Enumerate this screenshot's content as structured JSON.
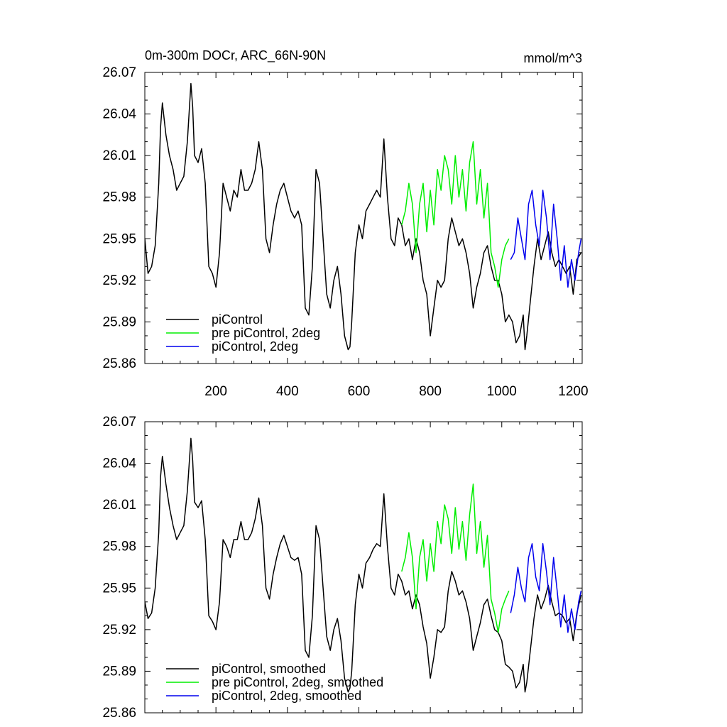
{
  "figure": {
    "title_left": "0m-300m DOCr, ARC_66N-90N",
    "title_right": "mmol/m^3"
  },
  "chart_data": [
    {
      "type": "line",
      "title": "0m-300m DOCr, ARC_66N-90N",
      "units_label": "mmol/m^3",
      "xlabel": "",
      "ylabel": "",
      "xlim": [
        1,
        1225
      ],
      "ylim": [
        25.86,
        26.07
      ],
      "x_ticks": [
        200,
        400,
        600,
        800,
        1000,
        1200
      ],
      "x_tick_labels": [
        "200",
        "400",
        "600",
        "800",
        "1000",
        "1200"
      ],
      "y_ticks": [
        25.86,
        25.89,
        25.92,
        25.95,
        25.98,
        26.01,
        26.04,
        26.07
      ],
      "y_tick_labels": [
        "25.86",
        "25.89",
        "25.92",
        "25.95",
        "25.98",
        "26.01",
        "26.04",
        "26.07"
      ],
      "legend_position": "bottom-left",
      "series": [
        {
          "name": "piControl",
          "color": "#000000",
          "x": [
            1,
            10,
            20,
            30,
            40,
            45,
            50,
            60,
            70,
            80,
            90,
            100,
            110,
            120,
            130,
            135,
            140,
            150,
            160,
            170,
            180,
            190,
            200,
            210,
            220,
            230,
            240,
            250,
            260,
            270,
            280,
            290,
            300,
            310,
            320,
            330,
            340,
            350,
            360,
            370,
            380,
            390,
            400,
            410,
            420,
            430,
            440,
            450,
            460,
            470,
            480,
            490,
            500,
            510,
            520,
            530,
            540,
            550,
            560,
            570,
            575,
            580,
            590,
            600,
            610,
            620,
            630,
            640,
            650,
            660,
            670,
            680,
            690,
            700,
            710,
            720,
            730,
            740,
            750,
            760,
            770,
            780,
            790,
            800,
            810,
            820,
            830,
            840,
            850,
            860,
            870,
            880,
            890,
            900,
            910,
            920,
            930,
            940,
            950,
            960,
            970,
            980,
            990,
            1000,
            1010,
            1020,
            1030,
            1040,
            1050,
            1060,
            1065,
            1070,
            1080,
            1090,
            1100,
            1110,
            1120,
            1130,
            1140,
            1150,
            1160,
            1170,
            1180,
            1190,
            1200,
            1210,
            1222
          ],
          "values": [
            25.95,
            25.925,
            25.93,
            25.945,
            25.99,
            26.03,
            26.048,
            26.025,
            26.01,
            26.0,
            25.985,
            25.99,
            25.995,
            26.02,
            26.062,
            26.045,
            26.01,
            26.005,
            26.015,
            25.99,
            25.93,
            25.925,
            25.915,
            25.94,
            25.99,
            25.98,
            25.97,
            25.985,
            25.98,
            26.0,
            25.985,
            25.985,
            25.99,
            26.0,
            26.02,
            26.0,
            25.95,
            25.94,
            25.96,
            25.975,
            25.985,
            25.99,
            25.98,
            25.97,
            25.965,
            25.97,
            25.96,
            25.9,
            25.895,
            25.93,
            26.0,
            25.99,
            25.95,
            25.91,
            25.9,
            25.92,
            25.93,
            25.91,
            25.88,
            25.87,
            25.872,
            25.89,
            25.94,
            25.96,
            25.95,
            25.97,
            25.975,
            25.98,
            25.985,
            25.98,
            26.022,
            25.98,
            25.95,
            25.945,
            25.965,
            25.96,
            25.945,
            25.95,
            25.935,
            25.95,
            25.94,
            25.92,
            25.91,
            25.88,
            25.9,
            25.92,
            25.915,
            25.92,
            25.95,
            25.965,
            25.955,
            25.945,
            25.95,
            25.94,
            25.925,
            25.9,
            25.915,
            25.925,
            25.94,
            25.945,
            25.93,
            25.92,
            25.92,
            25.91,
            25.89,
            25.895,
            25.89,
            25.875,
            25.88,
            25.895,
            25.87,
            25.88,
            25.905,
            25.93,
            25.95,
            25.935,
            25.945,
            25.955,
            25.94,
            25.93,
            25.935,
            25.93,
            25.925,
            25.93,
            25.91,
            25.935,
            25.94
          ]
        },
        {
          "name": "pre piControl, 2deg",
          "color": "#00ee00",
          "x": [
            720,
            730,
            740,
            750,
            760,
            770,
            780,
            790,
            800,
            810,
            820,
            830,
            840,
            850,
            860,
            870,
            880,
            890,
            900,
            910,
            920,
            930,
            940,
            950,
            960,
            970,
            980,
            990,
            1000,
            1010,
            1020
          ],
          "values": [
            25.96,
            25.97,
            25.99,
            25.975,
            25.94,
            25.975,
            25.99,
            25.955,
            25.985,
            25.96,
            26.0,
            25.985,
            26.01,
            26.0,
            25.975,
            26.01,
            25.98,
            26.0,
            25.97,
            26.005,
            26.02,
            25.975,
            26.0,
            25.965,
            25.99,
            25.94,
            25.93,
            25.915,
            25.935,
            25.945,
            25.95
          ]
        },
        {
          "name": "piControl, 2deg",
          "color": "#0000ee",
          "x": [
            1025,
            1035,
            1045,
            1055,
            1065,
            1075,
            1085,
            1095,
            1105,
            1115,
            1125,
            1135,
            1145,
            1155,
            1165,
            1175,
            1185,
            1195,
            1205,
            1215,
            1222
          ],
          "values": [
            25.935,
            25.94,
            25.965,
            25.95,
            25.935,
            25.975,
            25.985,
            25.96,
            25.945,
            25.985,
            25.965,
            25.935,
            25.975,
            25.95,
            25.92,
            25.945,
            25.915,
            25.935,
            25.92,
            25.94,
            25.95
          ]
        }
      ]
    },
    {
      "type": "line",
      "title": "",
      "xlabel": "",
      "ylabel": "",
      "xlim": [
        1,
        1225
      ],
      "ylim": [
        25.86,
        26.07
      ],
      "x_ticks": [
        200,
        400,
        600,
        800,
        1000,
        1200
      ],
      "y_ticks": [
        25.86,
        25.89,
        25.92,
        25.95,
        25.98,
        26.01,
        26.04,
        26.07
      ],
      "y_tick_labels": [
        "25.86",
        "25.89",
        "25.92",
        "25.95",
        "25.98",
        "26.01",
        "26.04",
        "26.07"
      ],
      "legend_position": "bottom-left",
      "series": [
        {
          "name": "piControl, smoothed",
          "color": "#000000",
          "x": [
            1,
            10,
            20,
            30,
            40,
            45,
            50,
            60,
            70,
            80,
            90,
            100,
            110,
            120,
            130,
            135,
            140,
            150,
            160,
            170,
            180,
            190,
            200,
            210,
            220,
            230,
            240,
            250,
            260,
            270,
            280,
            290,
            300,
            310,
            320,
            330,
            340,
            350,
            360,
            370,
            380,
            390,
            400,
            410,
            420,
            430,
            440,
            450,
            460,
            470,
            480,
            490,
            500,
            510,
            520,
            530,
            540,
            550,
            560,
            570,
            575,
            580,
            590,
            600,
            610,
            620,
            630,
            640,
            650,
            660,
            670,
            680,
            690,
            700,
            710,
            720,
            730,
            740,
            750,
            760,
            770,
            780,
            790,
            800,
            810,
            820,
            830,
            840,
            850,
            860,
            870,
            880,
            890,
            900,
            910,
            920,
            930,
            940,
            950,
            960,
            970,
            980,
            990,
            1000,
            1010,
            1020,
            1030,
            1040,
            1050,
            1060,
            1065,
            1070,
            1080,
            1090,
            1100,
            1110,
            1120,
            1130,
            1140,
            1150,
            1160,
            1170,
            1180,
            1190,
            1200,
            1210,
            1222
          ],
          "values": [
            25.94,
            25.928,
            25.932,
            25.95,
            25.99,
            26.03,
            26.045,
            26.025,
            26.008,
            25.995,
            25.985,
            25.99,
            25.995,
            26.02,
            26.058,
            26.042,
            26.012,
            26.008,
            26.013,
            25.985,
            25.93,
            25.926,
            25.92,
            25.94,
            25.985,
            25.98,
            25.972,
            25.985,
            25.985,
            25.998,
            25.985,
            25.985,
            25.99,
            26.0,
            26.015,
            25.995,
            25.95,
            25.942,
            25.96,
            25.972,
            25.982,
            25.988,
            25.98,
            25.972,
            25.97,
            25.972,
            25.96,
            25.905,
            25.9,
            25.93,
            25.995,
            25.985,
            25.95,
            25.915,
            25.905,
            25.92,
            25.928,
            25.912,
            25.885,
            25.875,
            25.878,
            25.89,
            25.938,
            25.96,
            25.95,
            25.968,
            25.972,
            25.978,
            25.982,
            25.98,
            26.018,
            25.98,
            25.95,
            25.945,
            25.96,
            25.955,
            25.945,
            25.948,
            25.935,
            25.945,
            25.938,
            25.922,
            25.91,
            25.885,
            25.9,
            25.92,
            25.918,
            25.922,
            25.948,
            25.962,
            25.955,
            25.945,
            25.948,
            25.94,
            25.928,
            25.905,
            25.915,
            25.925,
            25.938,
            25.942,
            25.93,
            25.92,
            25.918,
            25.912,
            25.895,
            25.893,
            25.89,
            25.878,
            25.882,
            25.895,
            25.875,
            25.882,
            25.905,
            25.928,
            25.945,
            25.935,
            25.942,
            25.952,
            25.94,
            25.93,
            25.932,
            25.93,
            25.925,
            25.928,
            25.912,
            25.932,
            25.945
          ]
        },
        {
          "name": "pre piControl, 2deg, smoothed",
          "color": "#00ee00",
          "x": [
            720,
            730,
            740,
            750,
            760,
            770,
            780,
            790,
            800,
            810,
            820,
            830,
            840,
            850,
            860,
            870,
            880,
            890,
            900,
            910,
            920,
            930,
            940,
            950,
            960,
            970,
            980,
            990,
            1000,
            1010,
            1020
          ],
          "values": [
            25.962,
            25.972,
            25.99,
            25.972,
            25.935,
            25.972,
            25.985,
            25.955,
            25.982,
            25.962,
            25.998,
            25.982,
            26.01,
            26.0,
            25.975,
            26.008,
            25.978,
            25.998,
            25.97,
            26.003,
            26.025,
            25.975,
            25.998,
            25.965,
            25.988,
            25.942,
            25.932,
            25.918,
            25.935,
            25.942,
            25.948
          ]
        },
        {
          "name": "piControl, 2deg, smoothed",
          "color": "#0000ee",
          "x": [
            1025,
            1035,
            1045,
            1055,
            1065,
            1075,
            1085,
            1095,
            1105,
            1115,
            1125,
            1135,
            1145,
            1155,
            1165,
            1175,
            1185,
            1195,
            1205,
            1215,
            1222
          ],
          "values": [
            25.932,
            25.945,
            25.965,
            25.95,
            25.94,
            25.972,
            25.982,
            25.958,
            25.948,
            25.982,
            25.962,
            25.938,
            25.972,
            25.948,
            25.922,
            25.945,
            25.918,
            25.935,
            25.92,
            25.94,
            25.948
          ]
        }
      ]
    }
  ]
}
